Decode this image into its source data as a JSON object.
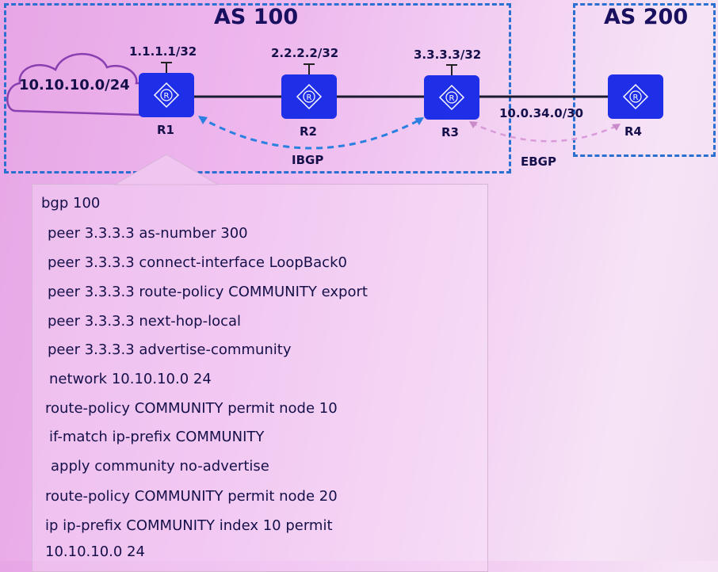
{
  "areas": {
    "as100": "AS 100",
    "as200": "AS 200"
  },
  "network": "10.10.10.0/24",
  "routers": [
    {
      "name": "R1",
      "loopback": "1.1.1.1/32"
    },
    {
      "name": "R2",
      "loopback": "2.2.2.2/32"
    },
    {
      "name": "R3",
      "loopback": "3.3.3.3/32"
    },
    {
      "name": "R4"
    }
  ],
  "link_r3_r4": "10.0.34.0/30",
  "sessions": {
    "ibgp": "IBGP",
    "ebgp": "EBGP"
  },
  "colors": {
    "router": "#1f2fe8",
    "as_border": "#2b6fd0",
    "ibgp": "#2b7fe0",
    "ebgp": "#d99ad9",
    "cloud": "#8a3fb0"
  },
  "config": [
    "bgp 100",
    "peer 3.3.3.3 as-number 300",
    "peer 3.3.3.3 connect-interface LoopBack0",
    "peer 3.3.3.3 route-policy COMMUNITY export",
    "peer 3.3.3.3 next-hop-local",
    "peer 3.3.3.3 advertise-community",
    "network 10.10.10.0 24",
    "route-policy COMMUNITY permit node 10",
    "if-match ip-prefix COMMUNITY",
    "apply community no-advertise",
    "route-policy COMMUNITY permit node 20",
    "ip ip-prefix COMMUNITY index 10 permit",
    "10.10.10.0 24"
  ]
}
